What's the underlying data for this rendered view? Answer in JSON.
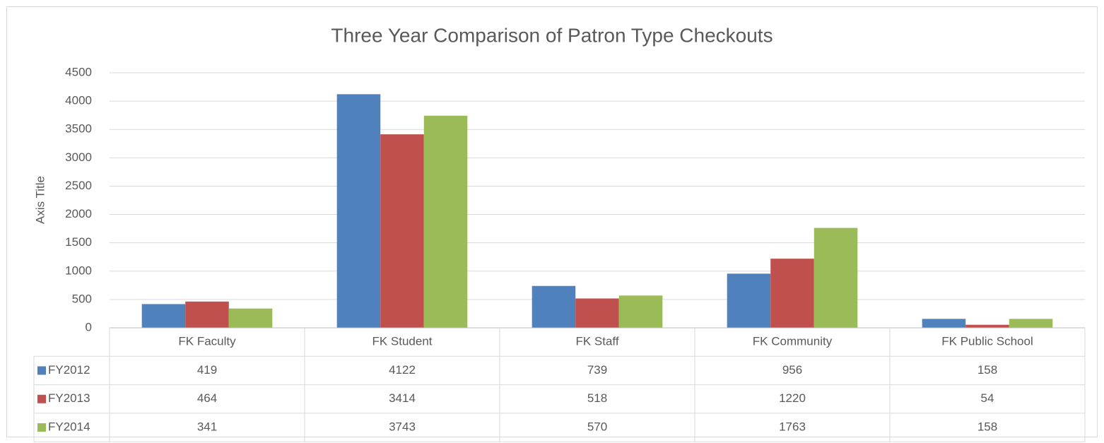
{
  "chart_data": {
    "type": "bar",
    "title": "Three Year Comparison of Patron Type Checkouts",
    "y_label": "Axis Title",
    "categories": [
      "FK Faculty",
      "FK Student",
      "FK Staff",
      "FK Community",
      "FK Public School"
    ],
    "series": [
      {
        "name": "FY2012",
        "color": "#4f81bd",
        "values": [
          419,
          4122,
          739,
          956,
          158
        ]
      },
      {
        "name": "FY2013",
        "color": "#c0504d",
        "values": [
          464,
          3414,
          518,
          1220,
          54
        ]
      },
      {
        "name": "FY2014",
        "color": "#9bbb59",
        "values": [
          341,
          3743,
          570,
          1763,
          158
        ]
      }
    ],
    "ylim": [
      0,
      4500
    ],
    "yticks": [
      0,
      500,
      1000,
      1500,
      2000,
      2500,
      3000,
      3500,
      4000,
      4500
    ],
    "grid": true
  }
}
